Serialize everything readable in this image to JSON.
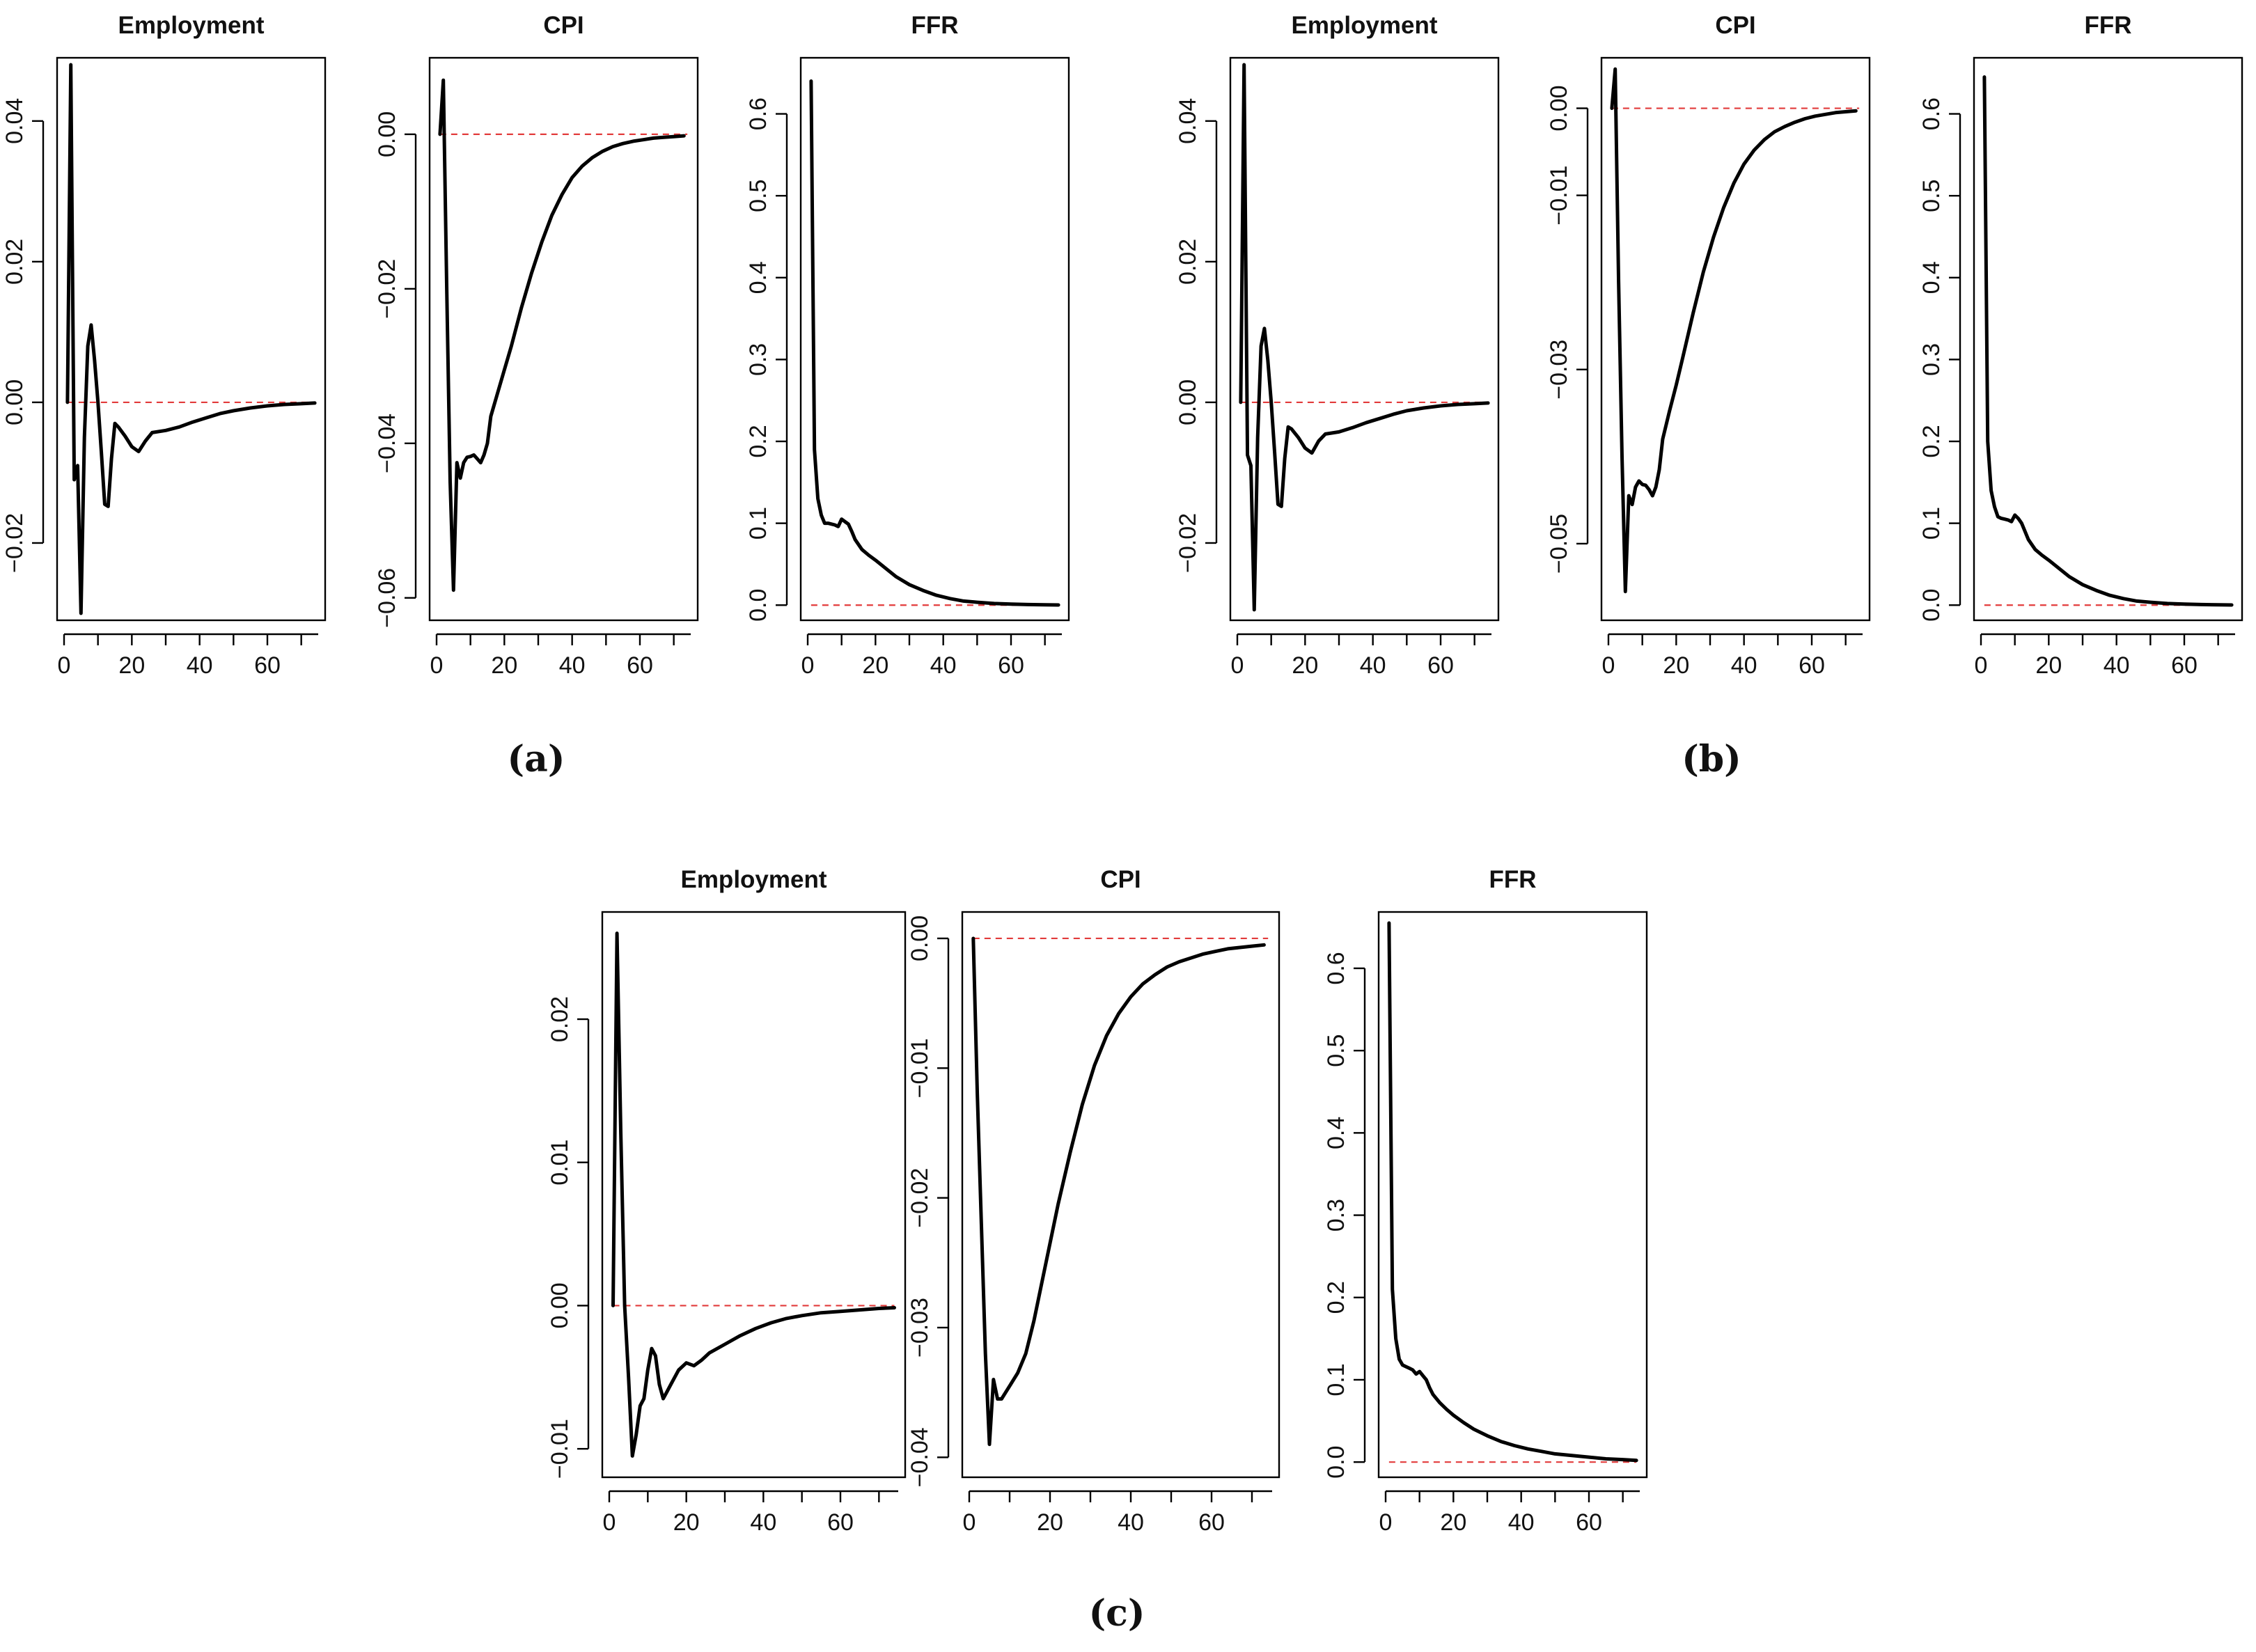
{
  "colors": {
    "zero_line": "#e23b3b",
    "curve": "#000000",
    "axis": "#000000",
    "background": "#ffffff"
  },
  "chart_data": [
    {
      "type": "line",
      "group": "a",
      "title": "Employment",
      "xlim": [
        0,
        75
      ],
      "ylim": [
        -0.03,
        0.048
      ],
      "xticks": [
        0,
        20,
        40,
        60
      ],
      "xtick_labels": [
        "0",
        "20",
        "40",
        "60"
      ],
      "yticks": [
        -0.02,
        0,
        0.02,
        0.04
      ],
      "ytick_labels": [
        "−0.02",
        "0.00",
        "0.02",
        "0.04"
      ],
      "reference_line": 0,
      "x": [
        1,
        2,
        3,
        4,
        5,
        6,
        7,
        8,
        9,
        10,
        11,
        12,
        13,
        14,
        15,
        16,
        18,
        20,
        22,
        24,
        26,
        30,
        34,
        38,
        42,
        46,
        50,
        55,
        60,
        65,
        70,
        74
      ],
      "values": [
        0,
        0.048,
        -0.011,
        -0.009,
        -0.03,
        -0.005,
        0.008,
        0.011,
        0.006,
        0.0,
        -0.007,
        -0.0145,
        -0.0148,
        -0.008,
        -0.003,
        -0.0035,
        -0.0048,
        -0.0063,
        -0.007,
        -0.0055,
        -0.0043,
        -0.004,
        -0.0035,
        -0.0028,
        -0.0022,
        -0.0016,
        -0.0012,
        -0.0008,
        -0.0005,
        -0.0003,
        -0.0002,
        -0.0001
      ]
    },
    {
      "type": "line",
      "group": "a",
      "title": "CPI",
      "xlim": [
        0,
        75
      ],
      "ylim": [
        -0.062,
        0.009
      ],
      "xticks": [
        0,
        20,
        40,
        60
      ],
      "xtick_labels": [
        "0",
        "20",
        "40",
        "60"
      ],
      "yticks": [
        -0.06,
        -0.04,
        -0.02,
        0.0
      ],
      "ytick_labels": [
        "−0.06",
        "−0.04",
        "−0.02",
        "0.00"
      ],
      "reference_line": 0,
      "x": [
        1,
        2,
        3,
        4,
        5,
        6,
        7,
        8,
        9,
        10,
        11,
        12,
        13,
        14,
        15,
        16,
        18,
        20,
        22,
        25,
        28,
        31,
        34,
        37,
        40,
        43,
        46,
        49,
        52,
        55,
        58,
        61,
        64,
        67,
        70,
        73
      ],
      "values": [
        0,
        0.007,
        -0.02,
        -0.045,
        -0.059,
        -0.0425,
        -0.0445,
        -0.0425,
        -0.0418,
        -0.0417,
        -0.0415,
        -0.042,
        -0.0425,
        -0.0415,
        -0.04,
        -0.0365,
        -0.0335,
        -0.0305,
        -0.0275,
        -0.0225,
        -0.018,
        -0.014,
        -0.0105,
        -0.0078,
        -0.0056,
        -0.0041,
        -0.003,
        -0.0022,
        -0.0016,
        -0.0012,
        -0.0009,
        -0.0007,
        -0.0005,
        -0.0004,
        -0.0003,
        -0.0002
      ]
    },
    {
      "type": "line",
      "group": "a",
      "title": "FFR",
      "xlim": [
        0,
        75
      ],
      "ylim": [
        -0.01,
        0.66
      ],
      "xticks": [
        0,
        20,
        40,
        60
      ],
      "xtick_labels": [
        "0",
        "20",
        "40",
        "60"
      ],
      "yticks": [
        0,
        0.1,
        0.2,
        0.3,
        0.4,
        0.5,
        0.6
      ],
      "ytick_labels": [
        "0.0",
        "0.1",
        "0.2",
        "0.3",
        "0.4",
        "0.5",
        "0.6"
      ],
      "reference_line": 0,
      "x": [
        1,
        2,
        3,
        4,
        5,
        6,
        7,
        8,
        9,
        10,
        11,
        12,
        13,
        14,
        16,
        18,
        20,
        23,
        26,
        30,
        34,
        38,
        42,
        46,
        50,
        55,
        60,
        65,
        70,
        74
      ],
      "values": [
        0.64,
        0.19,
        0.13,
        0.11,
        0.1,
        0.1,
        0.099,
        0.098,
        0.096,
        0.105,
        0.102,
        0.099,
        0.09,
        0.08,
        0.068,
        0.061,
        0.055,
        0.045,
        0.035,
        0.025,
        0.018,
        0.012,
        0.008,
        0.005,
        0.0035,
        0.002,
        0.0012,
        0.0007,
        0.0004,
        0.0002
      ]
    },
    {
      "type": "line",
      "group": "b",
      "title": "Employment",
      "xlim": [
        0,
        75
      ],
      "ylim": [
        -0.03,
        0.048
      ],
      "xticks": [
        0,
        20,
        40,
        60
      ],
      "xtick_labels": [
        "0",
        "20",
        "40",
        "60"
      ],
      "yticks": [
        -0.02,
        0,
        0.02,
        0.04
      ],
      "ytick_labels": [
        "−0.02",
        "0.00",
        "0.02",
        "0.04"
      ],
      "reference_line": 0,
      "x": [
        1,
        2,
        3,
        4,
        5,
        6,
        7,
        8,
        9,
        10,
        11,
        12,
        13,
        14,
        15,
        16,
        18,
        20,
        22,
        24,
        26,
        30,
        34,
        38,
        42,
        46,
        50,
        55,
        60,
        65,
        70,
        74
      ],
      "values": [
        0,
        0.048,
        -0.0075,
        -0.009,
        -0.0295,
        -0.005,
        0.008,
        0.0105,
        0.006,
        0.0,
        -0.007,
        -0.0145,
        -0.0148,
        -0.008,
        -0.0035,
        -0.0038,
        -0.005,
        -0.0065,
        -0.0072,
        -0.0055,
        -0.0045,
        -0.0042,
        -0.0036,
        -0.0029,
        -0.0023,
        -0.0017,
        -0.0012,
        -0.0008,
        -0.0005,
        -0.0003,
        -0.0002,
        -0.0001
      ]
    },
    {
      "type": "line",
      "group": "b",
      "title": "CPI",
      "xlim": [
        0,
        75
      ],
      "ylim": [
        -0.058,
        0.005
      ],
      "xticks": [
        0,
        20,
        40,
        60
      ],
      "xtick_labels": [
        "0",
        "20",
        "40",
        "60"
      ],
      "yticks": [
        -0.05,
        -0.03,
        -0.01,
        0.0
      ],
      "ytick_labels": [
        "−0.05",
        "−0.03",
        "−0.01",
        "0.00"
      ],
      "reference_line": 0,
      "x": [
        1,
        2,
        3,
        4,
        5,
        6,
        7,
        8,
        9,
        10,
        11,
        12,
        13,
        14,
        15,
        16,
        18,
        20,
        22,
        25,
        28,
        31,
        34,
        37,
        40,
        43,
        46,
        49,
        52,
        55,
        58,
        61,
        64,
        67,
        70,
        73
      ],
      "values": [
        0,
        0.0045,
        -0.02,
        -0.04,
        -0.0555,
        -0.0445,
        -0.0455,
        -0.0435,
        -0.0428,
        -0.0432,
        -0.0433,
        -0.0438,
        -0.0445,
        -0.0435,
        -0.0415,
        -0.038,
        -0.0348,
        -0.0318,
        -0.0285,
        -0.0235,
        -0.0188,
        -0.0148,
        -0.0114,
        -0.0086,
        -0.0064,
        -0.0048,
        -0.0036,
        -0.0027,
        -0.0021,
        -0.0016,
        -0.0012,
        -0.0009,
        -0.0007,
        -0.0005,
        -0.0004,
        -0.0003
      ]
    },
    {
      "type": "line",
      "group": "b",
      "title": "FFR",
      "xlim": [
        0,
        75
      ],
      "ylim": [
        -0.01,
        0.66
      ],
      "xticks": [
        0,
        20,
        40,
        60
      ],
      "xtick_labels": [
        "0",
        "20",
        "40",
        "60"
      ],
      "yticks": [
        0,
        0.1,
        0.2,
        0.3,
        0.4,
        0.5,
        0.6
      ],
      "ytick_labels": [
        "0.0",
        "0.1",
        "0.2",
        "0.3",
        "0.4",
        "0.5",
        "0.6"
      ],
      "reference_line": 0,
      "x": [
        1,
        2,
        3,
        4,
        5,
        6,
        7,
        8,
        9,
        10,
        11,
        12,
        13,
        14,
        16,
        18,
        20,
        23,
        26,
        30,
        34,
        38,
        42,
        46,
        50,
        55,
        60,
        65,
        70,
        74
      ],
      "values": [
        0.645,
        0.2,
        0.14,
        0.12,
        0.108,
        0.106,
        0.105,
        0.104,
        0.102,
        0.11,
        0.106,
        0.1,
        0.09,
        0.08,
        0.068,
        0.061,
        0.055,
        0.045,
        0.035,
        0.025,
        0.018,
        0.012,
        0.008,
        0.005,
        0.0035,
        0.002,
        0.0012,
        0.0007,
        0.0004,
        0.0002
      ]
    },
    {
      "type": "line",
      "group": "c",
      "title": "Employment",
      "xlim": [
        0,
        75
      ],
      "ylim": [
        -0.0115,
        0.027
      ],
      "xticks": [
        0,
        20,
        40,
        60
      ],
      "xtick_labels": [
        "0",
        "20",
        "40",
        "60"
      ],
      "yticks": [
        -0.01,
        0.0,
        0.01,
        0.02
      ],
      "ytick_labels": [
        "−0.01",
        "0.00",
        "0.01",
        "0.02"
      ],
      "reference_line": 0,
      "x": [
        1,
        2,
        3,
        4,
        5,
        6,
        7,
        8,
        9,
        10,
        11,
        12,
        13,
        14,
        15,
        16,
        18,
        20,
        22,
        24,
        26,
        30,
        34,
        38,
        42,
        46,
        50,
        55,
        60,
        65,
        70,
        74
      ],
      "values": [
        0,
        0.026,
        0.012,
        0.0,
        -0.005,
        -0.0105,
        -0.009,
        -0.007,
        -0.0065,
        -0.0045,
        -0.003,
        -0.0035,
        -0.0055,
        -0.0065,
        -0.006,
        -0.0055,
        -0.0045,
        -0.004,
        -0.0042,
        -0.0038,
        -0.0033,
        -0.0027,
        -0.0021,
        -0.0016,
        -0.0012,
        -0.0009,
        -0.0007,
        -0.0005,
        -0.0004,
        -0.0003,
        -0.0002,
        -0.00015
      ]
    },
    {
      "type": "line",
      "group": "c",
      "title": "CPI",
      "xlim": [
        0,
        75
      ],
      "ylim": [
        -0.041,
        0.0015
      ],
      "xticks": [
        0,
        20,
        40,
        60
      ],
      "xtick_labels": [
        "0",
        "20",
        "40",
        "60"
      ],
      "yticks": [
        -0.04,
        -0.03,
        -0.02,
        -0.01,
        0.0
      ],
      "ytick_labels": [
        "−0.04",
        "−0.03",
        "−0.02",
        "−0.01",
        "0.00"
      ],
      "reference_line": 0,
      "x": [
        1,
        2,
        3,
        4,
        5,
        6,
        7,
        8,
        9,
        10,
        12,
        14,
        16,
        18,
        20,
        22,
        25,
        28,
        31,
        34,
        37,
        40,
        43,
        46,
        49,
        52,
        55,
        58,
        61,
        64,
        67,
        70,
        73
      ],
      "values": [
        0,
        -0.012,
        -0.022,
        -0.032,
        -0.039,
        -0.034,
        -0.0355,
        -0.0355,
        -0.035,
        -0.0345,
        -0.0335,
        -0.032,
        -0.0295,
        -0.0265,
        -0.0235,
        -0.0205,
        -0.0165,
        -0.0128,
        -0.0098,
        -0.0075,
        -0.0058,
        -0.0045,
        -0.0035,
        -0.0028,
        -0.0022,
        -0.0018,
        -0.0015,
        -0.0012,
        -0.001,
        -0.0008,
        -0.0007,
        -0.0006,
        -0.0005
      ]
    },
    {
      "type": "line",
      "group": "c",
      "title": "FFR",
      "xlim": [
        0,
        75
      ],
      "ylim": [
        -0.01,
        0.66
      ],
      "xticks": [
        0,
        20,
        40,
        60
      ],
      "xtick_labels": [
        "0",
        "20",
        "40",
        "60"
      ],
      "yticks": [
        0,
        0.1,
        0.2,
        0.3,
        0.4,
        0.5,
        0.6
      ],
      "ytick_labels": [
        "0.0",
        "0.1",
        "0.2",
        "0.3",
        "0.4",
        "0.5",
        "0.6"
      ],
      "reference_line": 0,
      "x": [
        1,
        2,
        3,
        4,
        5,
        6,
        7,
        8,
        9,
        10,
        11,
        12,
        13,
        14,
        16,
        18,
        20,
        23,
        26,
        30,
        34,
        38,
        42,
        46,
        50,
        55,
        60,
        65,
        70,
        74
      ],
      "values": [
        0.655,
        0.21,
        0.15,
        0.125,
        0.118,
        0.116,
        0.114,
        0.112,
        0.107,
        0.11,
        0.105,
        0.1,
        0.09,
        0.082,
        0.072,
        0.064,
        0.057,
        0.048,
        0.04,
        0.032,
        0.025,
        0.02,
        0.016,
        0.013,
        0.01,
        0.008,
        0.006,
        0.004,
        0.003,
        0.002
      ]
    }
  ],
  "captions": [
    "(a)",
    "(b)",
    "(c)"
  ]
}
